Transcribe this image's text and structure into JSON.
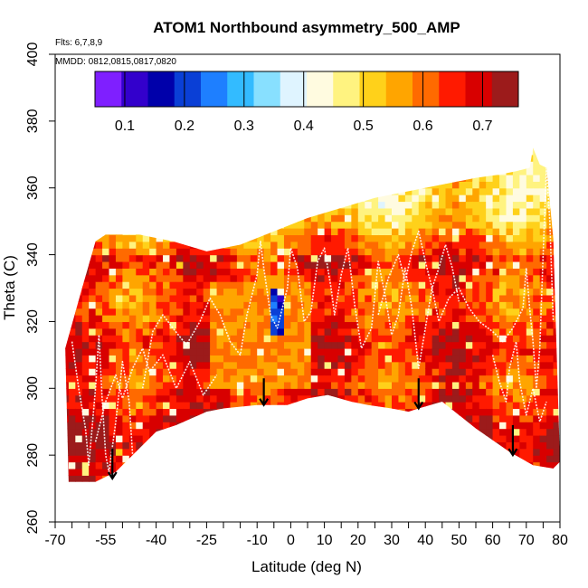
{
  "chart_data": {
    "type": "heatmap",
    "title": "ATOM1 Northbound asymmetry_500_AMP",
    "subtitle_flights": "Flts: 6,7,8,9",
    "subtitle_dates": "MMDD: 0812,0815,0817,0820",
    "xlabel": "Latitude (deg N)",
    "ylabel": "Theta (C)",
    "xlim": [
      -70,
      80
    ],
    "ylim": [
      260,
      400
    ],
    "x_ticks": [
      -70,
      -55,
      -40,
      -25,
      -10,
      0,
      10,
      20,
      30,
      40,
      50,
      60,
      70,
      80
    ],
    "y_ticks": [
      260,
      280,
      300,
      320,
      340,
      360,
      380,
      400
    ],
    "colorbar": {
      "range": [
        0.05,
        0.76
      ],
      "tick_values": [
        0.1,
        0.2,
        0.3,
        0.4,
        0.5,
        0.6,
        0.7
      ],
      "tick_labels": [
        "0.1",
        "0.2",
        "0.3",
        "0.4",
        "0.5",
        "0.6",
        "0.7"
      ],
      "colors": [
        "#7f1fff",
        "#3300cc",
        "#0000aa",
        "#0a3fd6",
        "#1e7fff",
        "#33bbff",
        "#88e0ff",
        "#dff4ff",
        "#fffbe0",
        "#fff380",
        "#ffd11a",
        "#ffa500",
        "#ff6a00",
        "#ff1a00",
        "#d80000",
        "#9c1b1b"
      ]
    },
    "region": {
      "top_boundary": [
        [
          -67,
          312
        ],
        [
          -62,
          330
        ],
        [
          -58,
          344
        ],
        [
          -55,
          346
        ],
        [
          -45,
          346
        ],
        [
          -35,
          344
        ],
        [
          -25,
          341
        ],
        [
          -15,
          343
        ],
        [
          -5,
          347
        ],
        [
          5,
          351
        ],
        [
          15,
          354
        ],
        [
          25,
          357
        ],
        [
          35,
          359
        ],
        [
          45,
          361
        ],
        [
          55,
          363
        ],
        [
          62,
          364
        ],
        [
          67,
          365
        ],
        [
          71,
          366
        ],
        [
          72,
          372
        ],
        [
          74,
          367
        ],
        [
          76,
          366
        ],
        [
          78,
          345
        ],
        [
          80,
          278
        ]
      ],
      "bottom_boundary": [
        [
          -66,
          272
        ],
        [
          -58,
          272
        ],
        [
          -52,
          275
        ],
        [
          -45,
          282
        ],
        [
          -40,
          287
        ],
        [
          -34,
          289
        ],
        [
          -25,
          293
        ],
        [
          -20,
          294
        ],
        [
          -10,
          295
        ],
        [
          -1,
          295
        ],
        [
          5,
          297
        ],
        [
          11,
          298
        ],
        [
          18,
          296
        ],
        [
          23,
          295
        ],
        [
          30,
          294
        ],
        [
          35,
          293
        ],
        [
          38,
          294
        ],
        [
          45,
          296
        ],
        [
          55,
          288
        ],
        [
          65,
          281
        ],
        [
          72,
          277
        ],
        [
          78,
          276
        ]
      ]
    },
    "field": {
      "base_value": 0.64,
      "lat_band_amplitude": 0.05,
      "warm_patch": {
        "lat": [
          -25,
          5
        ],
        "theta": [
          300,
          330
        ],
        "value": 0.58
      },
      "low_anomaly": {
        "lat": [
          -6,
          -3
        ],
        "theta": [
          316,
          328
        ],
        "value": 0.18
      }
    },
    "arrows": [
      {
        "lat": -53,
        "theta_head": 273,
        "theta_tail": 282
      },
      {
        "lat": -8,
        "theta_head": 295,
        "theta_tail": 303
      },
      {
        "lat": 38,
        "theta_head": 294,
        "theta_tail": 303
      },
      {
        "lat": 66,
        "theta_head": 280,
        "theta_tail": 289
      }
    ],
    "flight_tracks": [
      [
        [
          -65,
          314
        ],
        [
          -63,
          300
        ],
        [
          -61,
          288
        ],
        [
          -60,
          277
        ],
        [
          -58,
          300
        ],
        [
          -57,
          316
        ],
        [
          -56,
          296
        ],
        [
          -55,
          280
        ],
        [
          -54,
          275
        ],
        [
          -52,
          290
        ],
        [
          -50,
          308
        ],
        [
          -48,
          296
        ],
        [
          -47,
          280
        ]
      ],
      [
        [
          -44,
          300
        ],
        [
          -41,
          317
        ],
        [
          -38,
          322
        ],
        [
          -35,
          318
        ],
        [
          -31,
          313
        ],
        [
          -27,
          320
        ],
        [
          -24,
          327
        ],
        [
          -21,
          322
        ],
        [
          -18,
          314
        ],
        [
          -15,
          310
        ],
        [
          -13,
          322
        ],
        [
          -10,
          334
        ],
        [
          -9,
          344
        ],
        [
          -8,
          336
        ],
        [
          -6,
          322
        ],
        [
          -4,
          318
        ],
        [
          -1,
          330
        ],
        [
          0,
          342
        ],
        [
          2,
          336
        ],
        [
          4,
          320
        ],
        [
          6,
          323
        ],
        [
          8,
          338
        ],
        [
          10,
          342
        ],
        [
          12,
          330
        ],
        [
          13,
          322
        ],
        [
          15,
          334
        ],
        [
          17,
          342
        ],
        [
          19,
          325
        ],
        [
          21,
          312
        ],
        [
          24,
          318
        ],
        [
          26,
          338
        ],
        [
          28,
          328
        ],
        [
          30,
          316
        ],
        [
          32,
          322
        ],
        [
          34,
          336
        ],
        [
          36,
          324
        ],
        [
          38,
          306
        ],
        [
          40,
          318
        ],
        [
          42,
          330
        ],
        [
          44,
          320
        ],
        [
          47,
          327
        ],
        [
          50,
          330
        ],
        [
          53,
          324
        ],
        [
          56,
          320
        ],
        [
          60,
          317
        ],
        [
          63,
          314
        ],
        [
          66,
          318
        ],
        [
          69,
          324
        ],
        [
          70,
          336
        ],
        [
          71,
          324
        ],
        [
          72,
          314
        ],
        [
          73,
          300
        ],
        [
          74,
          312
        ],
        [
          75,
          340
        ],
        [
          76,
          366
        ],
        [
          77,
          350
        ],
        [
          78,
          320
        ]
      ],
      [
        [
          -58,
          284
        ],
        [
          -55,
          296
        ],
        [
          -52,
          304
        ],
        [
          -50,
          297
        ],
        [
          -47,
          306
        ],
        [
          -44,
          312
        ],
        [
          -42,
          305
        ],
        [
          -38,
          310
        ],
        [
          -34,
          300
        ],
        [
          -30,
          308
        ],
        [
          -26,
          298
        ],
        [
          -22,
          304
        ]
      ],
      [
        [
          26,
          322
        ],
        [
          29,
          333
        ],
        [
          32,
          340
        ],
        [
          34,
          332
        ],
        [
          36,
          341
        ],
        [
          38,
          347
        ],
        [
          40,
          338
        ],
        [
          42,
          330
        ],
        [
          44,
          336
        ],
        [
          46,
          343
        ],
        [
          48,
          336
        ],
        [
          50,
          326
        ]
      ],
      [
        [
          60,
          310
        ],
        [
          62,
          302
        ],
        [
          64,
          296
        ],
        [
          65,
          306
        ],
        [
          67,
          314
        ],
        [
          68,
          302
        ],
        [
          70,
          292
        ],
        [
          72,
          300
        ],
        [
          74,
          290
        ],
        [
          76,
          296
        ]
      ]
    ]
  }
}
